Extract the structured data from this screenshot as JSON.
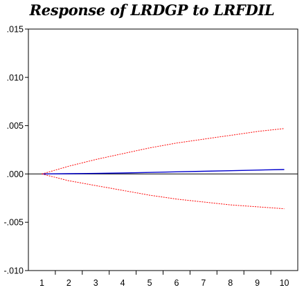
{
  "chart_data": {
    "type": "line",
    "title": "Response of LRDGP to LRFDIL",
    "xlabel": "",
    "ylabel": "",
    "x": [
      1,
      2,
      3,
      4,
      5,
      6,
      7,
      8,
      9,
      10
    ],
    "xlim": [
      0.5,
      10.5
    ],
    "ylim": [
      -0.01,
      0.015
    ],
    "yticks": [
      0.015,
      0.01,
      0.005,
      0.0,
      -0.005,
      -0.01
    ],
    "ytick_labels": [
      ".015",
      ".010",
      ".005",
      ".000",
      "-.005",
      "-.010"
    ],
    "xtick_labels": [
      "1",
      "2",
      "3",
      "4",
      "5",
      "6",
      "7",
      "8",
      "9",
      "10"
    ],
    "zero_line": true,
    "grid": false,
    "legend": "none",
    "series": [
      {
        "role": "response",
        "style": "solid",
        "color": "#0000cc",
        "values": [
          0.0,
          3e-05,
          6e-05,
          0.0001,
          0.00016,
          0.00022,
          0.00028,
          0.00034,
          0.0004,
          0.00046
        ]
      },
      {
        "role": "upper-band",
        "style": "dashed",
        "color": "#ff0000",
        "values": [
          0.0,
          0.0008,
          0.0015,
          0.0021,
          0.0027,
          0.0032,
          0.0036,
          0.004,
          0.0044,
          0.0047
        ]
      },
      {
        "role": "lower-band",
        "style": "dashed",
        "color": "#ff0000",
        "values": [
          0.0,
          -0.0007,
          -0.0012,
          -0.0017,
          -0.0022,
          -0.0026,
          -0.0029,
          -0.0032,
          -0.0034,
          -0.0036
        ]
      }
    ]
  }
}
